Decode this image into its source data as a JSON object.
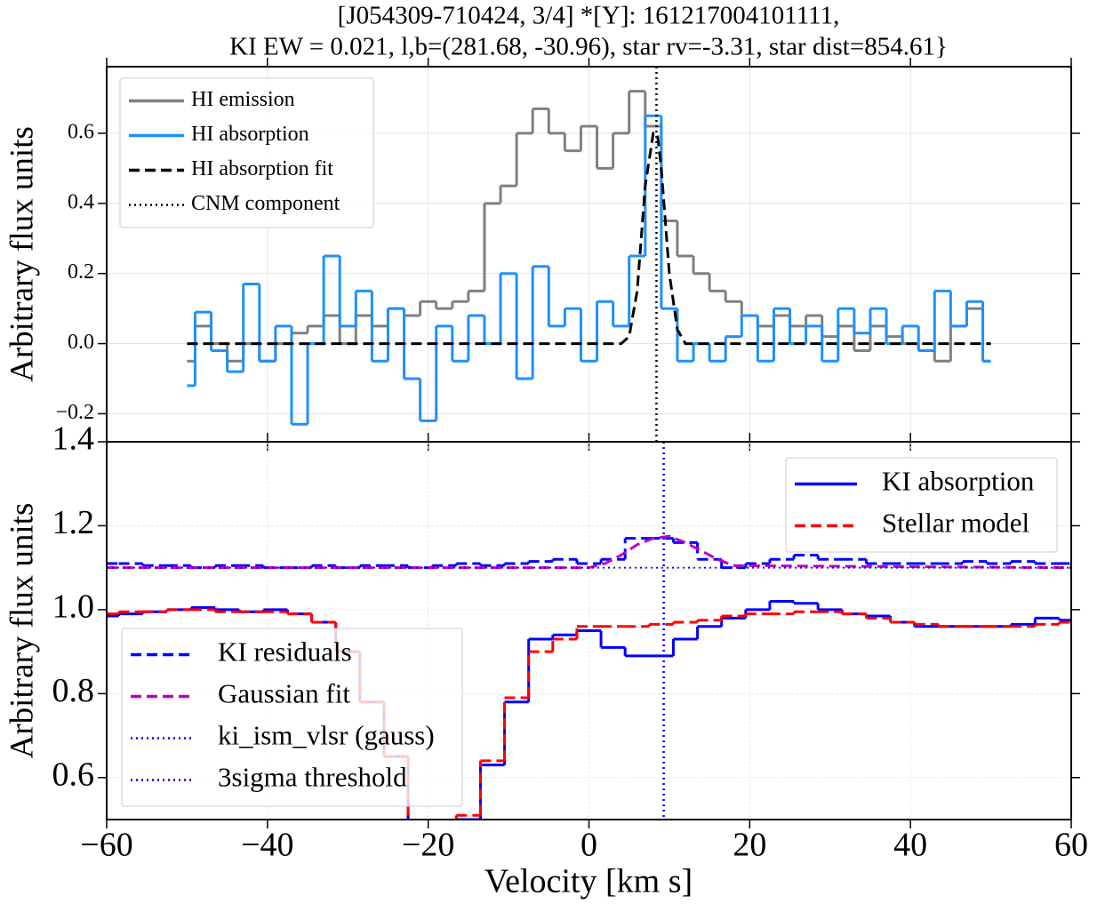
{
  "chart_data": [
    {
      "type": "line",
      "title": [
        "[J054309-710424, 3/4] *[Y]: 161217004101111,",
        "KI EW = 0.021, l,b=(281.68, -30.96), star rv=-3.31, star dist=854.61}"
      ],
      "ylabel": "Arbitrary flux units",
      "xlim": [
        -60,
        60
      ],
      "xticks": [
        -60,
        -40,
        -20,
        0,
        20,
        40,
        60
      ],
      "ylim": [
        -0.28,
        0.79
      ],
      "yticks": [
        {
          "value": -0.2,
          "label": "−0.2"
        },
        {
          "value": 0.0,
          "label": "0.0"
        },
        0.2,
        0.4,
        0.6
      ],
      "grid": true,
      "legend": "upper left",
      "series": [
        {
          "name": "HI emission",
          "color": "#808080",
          "drawstyle": "steps",
          "dash": "solid",
          "x": [
            -50,
            -48,
            -46,
            -44,
            -42,
            -40,
            -38,
            -36,
            -34,
            -32,
            -30,
            -28,
            -26,
            -24,
            -22,
            -20,
            -18,
            -16,
            -14,
            -12,
            -10,
            -8,
            -6,
            -4,
            -2,
            0,
            2,
            4,
            6,
            8,
            10,
            12,
            14,
            16,
            18,
            20,
            22,
            24,
            26,
            28,
            30,
            32,
            34,
            36,
            38,
            40,
            42,
            44,
            46,
            48,
            50
          ],
          "values": [
            -0.05,
            0.05,
            0.0,
            -0.05,
            0.0,
            -0.05,
            0.0,
            0.03,
            0.05,
            0.08,
            0.0,
            0.08,
            0.05,
            0.1,
            0.08,
            0.12,
            0.1,
            0.12,
            0.15,
            0.4,
            0.45,
            0.6,
            0.67,
            0.6,
            0.55,
            0.62,
            0.5,
            0.6,
            0.72,
            0.62,
            0.35,
            0.25,
            0.2,
            0.15,
            0.12,
            0.08,
            0.05,
            0.08,
            0.05,
            0.08,
            0.02,
            0.05,
            -0.02,
            0.05,
            0.02,
            0.0,
            -0.02,
            -0.05,
            0.05,
            0.1,
            -0.05
          ]
        },
        {
          "name": "HI absorption",
          "color": "#1e90ff",
          "drawstyle": "steps",
          "dash": "solid",
          "x": [
            -50,
            -48,
            -46,
            -44,
            -42,
            -40,
            -38,
            -36,
            -34,
            -32,
            -30,
            -28,
            -26,
            -24,
            -22,
            -20,
            -18,
            -16,
            -14,
            -12,
            -10,
            -8,
            -6,
            -4,
            -2,
            0,
            2,
            4,
            6,
            8,
            10,
            12,
            14,
            16,
            18,
            20,
            22,
            24,
            26,
            28,
            30,
            32,
            34,
            36,
            38,
            40,
            42,
            44,
            46,
            48,
            50
          ],
          "values": [
            -0.12,
            0.09,
            -0.02,
            -0.08,
            0.17,
            -0.05,
            0.05,
            -0.23,
            0.0,
            0.25,
            0.05,
            0.15,
            -0.05,
            0.1,
            -0.1,
            -0.22,
            0.05,
            -0.05,
            0.08,
            0.0,
            0.2,
            -0.1,
            0.22,
            0.05,
            0.1,
            -0.05,
            0.12,
            0.05,
            0.25,
            0.65,
            0.1,
            -0.05,
            0.0,
            -0.05,
            0.02,
            0.08,
            -0.05,
            0.1,
            0.0,
            0.05,
            -0.05,
            0.1,
            0.03,
            0.1,
            0.0,
            0.05,
            -0.02,
            0.15,
            0.05,
            0.12,
            -0.05
          ]
        },
        {
          "name": "HI absorption fit",
          "color": "#000000",
          "drawstyle": "default",
          "dash": "dashed",
          "x": [
            -50,
            4,
            5,
            6,
            7,
            8,
            8.5,
            9,
            10,
            11,
            12,
            50
          ],
          "values": [
            0,
            0,
            0.02,
            0.15,
            0.45,
            0.6,
            0.6,
            0.5,
            0.2,
            0.04,
            0,
            0
          ]
        },
        {
          "name": "CNM component",
          "color": "#000000",
          "drawstyle": "vline",
          "dash": "dotted",
          "vline": 8.4
        }
      ]
    },
    {
      "type": "line",
      "xlabel": "Velocity [km s]",
      "ylabel": "Arbitrary flux units",
      "xlim": [
        -60,
        60
      ],
      "xticks": [
        {
          "value": -60,
          "label": "−60"
        },
        {
          "value": -40,
          "label": "−40"
        },
        {
          "value": -20,
          "label": "−20"
        },
        0,
        20,
        40,
        60
      ],
      "ylim": [
        0.5,
        1.4
      ],
      "yticks": [
        0.6,
        0.8,
        {
          "value": 1.0,
          "label": "1.0"
        },
        1.2,
        1.4
      ],
      "grid": true,
      "series": [
        {
          "name": "KI absorption",
          "color": "#0000ff",
          "drawstyle": "steps",
          "dash": "solid",
          "legend": "upper right",
          "x": [
            -60,
            -57,
            -54,
            -51,
            -48,
            -45,
            -42,
            -39,
            -36,
            -33,
            -30,
            -27,
            -24,
            -21,
            -18,
            -15,
            -12,
            -9,
            -6,
            -3,
            0,
            3,
            6,
            9,
            12,
            15,
            18,
            21,
            24,
            27,
            30,
            33,
            36,
            39,
            42,
            45,
            48,
            51,
            54,
            57,
            60
          ],
          "values": [
            0.985,
            0.99,
            0.995,
            1.0,
            1.005,
            1.0,
            0.995,
            1.0,
            0.99,
            0.97,
            0.9,
            0.78,
            0.65,
            0.45,
            0.45,
            0.5,
            0.63,
            0.78,
            0.93,
            0.94,
            0.95,
            0.91,
            0.89,
            0.89,
            0.93,
            0.96,
            0.98,
            1.0,
            1.02,
            1.015,
            1.0,
            0.99,
            0.985,
            0.97,
            0.96,
            0.96,
            0.96,
            0.96,
            0.965,
            0.98,
            0.975
          ]
        },
        {
          "name": "Stellar model",
          "color": "#ff0000",
          "drawstyle": "steps",
          "dash": "dashed",
          "legend": "upper right",
          "x": [
            -60,
            -57,
            -54,
            -51,
            -48,
            -45,
            -42,
            -39,
            -36,
            -33,
            -30,
            -27,
            -24,
            -21,
            -18,
            -15,
            -12,
            -9,
            -6,
            -3,
            0,
            3,
            6,
            9,
            12,
            15,
            18,
            21,
            24,
            27,
            30,
            33,
            36,
            39,
            42,
            45,
            48,
            51,
            54,
            57,
            60
          ],
          "values": [
            0.99,
            0.995,
            0.995,
            1.0,
            1.0,
            0.995,
            0.995,
            0.995,
            0.99,
            0.97,
            0.9,
            0.78,
            0.65,
            0.45,
            0.45,
            0.51,
            0.64,
            0.79,
            0.9,
            0.93,
            0.96,
            0.96,
            0.96,
            0.965,
            0.97,
            0.975,
            0.985,
            0.99,
            0.99,
            0.995,
            0.995,
            0.99,
            0.98,
            0.97,
            0.965,
            0.96,
            0.96,
            0.96,
            0.96,
            0.965,
            0.97
          ]
        },
        {
          "name": "KI residuals",
          "color": "#0000ff",
          "drawstyle": "steps",
          "dash": "dashed",
          "legend": "lower left",
          "x": [
            -60,
            -57,
            -54,
            -51,
            -48,
            -45,
            -42,
            -39,
            -36,
            -33,
            -30,
            -27,
            -24,
            -21,
            -18,
            -15,
            -12,
            -9,
            -6,
            -3,
            0,
            3,
            6,
            9,
            12,
            15,
            18,
            21,
            24,
            27,
            30,
            33,
            36,
            39,
            42,
            45,
            48,
            51,
            54,
            57,
            60
          ],
          "values": [
            1.11,
            1.11,
            1.105,
            1.105,
            1.1,
            1.105,
            1.105,
            1.1,
            1.1,
            1.105,
            1.1,
            1.105,
            1.105,
            1.1,
            1.105,
            1.11,
            1.105,
            1.11,
            1.115,
            1.12,
            1.11,
            1.12,
            1.17,
            1.17,
            1.16,
            1.12,
            1.1,
            1.11,
            1.12,
            1.13,
            1.12,
            1.12,
            1.11,
            1.11,
            1.11,
            1.11,
            1.115,
            1.11,
            1.115,
            1.11,
            1.11
          ]
        },
        {
          "name": "Gaussian fit",
          "color": "#c000c0",
          "drawstyle": "default",
          "dash": "dashed",
          "legend": "lower left",
          "x": [
            -60,
            0,
            2,
            4,
            6,
            8,
            10,
            12,
            14,
            16,
            18,
            60
          ],
          "values": [
            1.1,
            1.1,
            1.11,
            1.13,
            1.155,
            1.17,
            1.175,
            1.16,
            1.14,
            1.12,
            1.105,
            1.1
          ]
        },
        {
          "name": "ki_ism_vlsr (gauss)",
          "color": "#0000ff",
          "drawstyle": "vline",
          "dash": "dotted",
          "legend": "lower left",
          "vline": 9.3
        },
        {
          "name": "3sigma threshold",
          "color": "#0000ff",
          "drawstyle": "hline",
          "dash": "dotted",
          "legend": "lower left",
          "hline": 1.1
        }
      ]
    }
  ]
}
